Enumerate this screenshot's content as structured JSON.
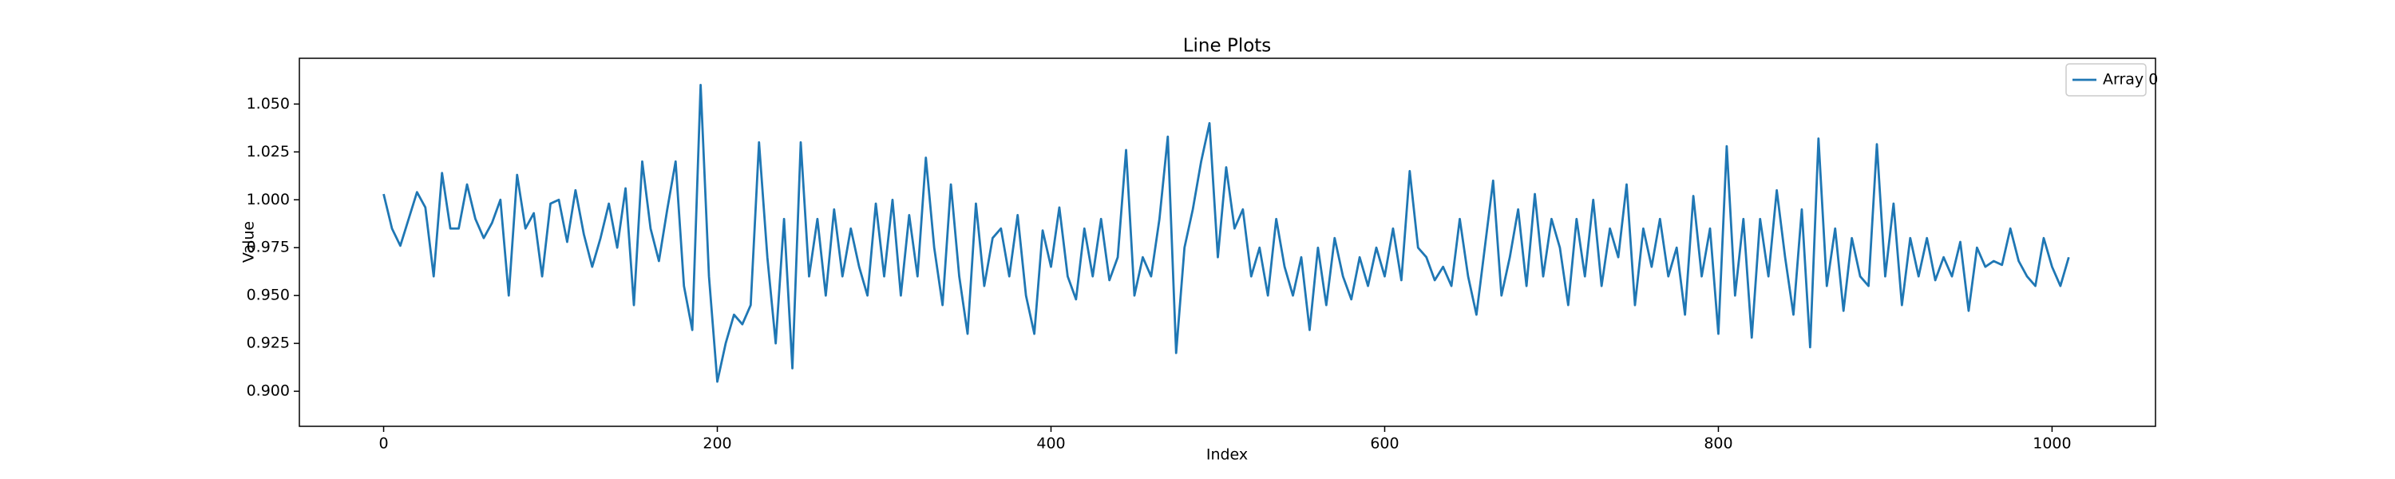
{
  "chart_data": {
    "type": "line",
    "title": "Line Plots",
    "x_label": "Index",
    "y_label": "Value",
    "x": [
      0,
      5,
      10,
      15,
      20,
      25,
      30,
      35,
      40,
      45,
      50,
      55,
      60,
      65,
      70,
      75,
      80,
      85,
      90,
      95,
      100,
      105,
      110,
      115,
      120,
      125,
      130,
      135,
      140,
      145,
      150,
      155,
      160,
      165,
      170,
      175,
      180,
      185,
      190,
      195,
      200,
      205,
      210,
      215,
      220,
      225,
      230,
      235,
      240,
      245,
      250,
      255,
      260,
      265,
      270,
      275,
      280,
      285,
      290,
      295,
      300,
      305,
      310,
      315,
      320,
      325,
      330,
      335,
      340,
      345,
      350,
      355,
      360,
      365,
      370,
      375,
      380,
      385,
      390,
      395,
      400,
      405,
      410,
      415,
      420,
      425,
      430,
      435,
      440,
      445,
      450,
      455,
      460,
      465,
      470,
      475,
      480,
      485,
      490,
      495,
      500,
      505,
      510,
      515,
      520,
      525,
      530,
      535,
      540,
      545,
      550,
      555,
      560,
      565,
      570,
      575,
      580,
      585,
      590,
      595,
      600,
      605,
      610,
      615,
      620,
      625,
      630,
      635,
      640,
      645,
      650,
      655,
      660,
      665,
      670,
      675,
      680,
      685,
      690,
      695,
      700,
      705,
      710,
      715,
      720,
      725,
      730,
      735,
      740,
      745,
      750,
      755,
      760,
      765,
      770,
      775,
      780,
      785,
      790,
      795,
      800,
      805,
      810,
      815,
      820,
      825,
      830,
      835,
      840,
      845,
      850,
      855,
      860,
      865,
      870,
      875,
      880,
      885,
      890,
      895,
      900,
      905,
      910,
      915,
      920,
      925,
      930,
      935,
      940,
      945,
      950,
      955,
      960,
      965,
      970,
      975,
      980,
      985,
      990,
      995,
      1000,
      1005,
      1010
    ],
    "series": [
      {
        "name": "Array 0",
        "color": "#1f77b4",
        "values": [
          1.003,
          0.985,
          0.976,
          0.99,
          1.004,
          0.996,
          0.96,
          1.014,
          0.985,
          0.985,
          1.008,
          0.99,
          0.98,
          0.988,
          1.0,
          0.95,
          1.013,
          0.985,
          0.993,
          0.96,
          0.998,
          1.0,
          0.978,
          1.005,
          0.982,
          0.965,
          0.98,
          0.998,
          0.975,
          1.006,
          0.945,
          1.02,
          0.985,
          0.968,
          0.995,
          1.02,
          0.955,
          0.932,
          1.06,
          0.96,
          0.905,
          0.925,
          0.94,
          0.935,
          0.945,
          1.03,
          0.97,
          0.925,
          0.99,
          0.912,
          1.03,
          0.96,
          0.99,
          0.95,
          0.995,
          0.96,
          0.985,
          0.965,
          0.95,
          0.998,
          0.96,
          1.0,
          0.95,
          0.992,
          0.96,
          1.022,
          0.975,
          0.945,
          1.008,
          0.96,
          0.93,
          0.998,
          0.955,
          0.98,
          0.985,
          0.96,
          0.992,
          0.95,
          0.93,
          0.984,
          0.965,
          0.996,
          0.96,
          0.948,
          0.985,
          0.96,
          0.99,
          0.958,
          0.97,
          1.026,
          0.95,
          0.97,
          0.96,
          0.99,
          1.033,
          0.92,
          0.975,
          0.995,
          1.02,
          1.04,
          0.97,
          1.017,
          0.985,
          0.995,
          0.96,
          0.975,
          0.95,
          0.99,
          0.965,
          0.95,
          0.97,
          0.932,
          0.975,
          0.945,
          0.98,
          0.96,
          0.948,
          0.97,
          0.955,
          0.975,
          0.96,
          0.985,
          0.958,
          1.015,
          0.975,
          0.97,
          0.958,
          0.965,
          0.955,
          0.99,
          0.96,
          0.94,
          0.975,
          1.01,
          0.95,
          0.97,
          0.995,
          0.955,
          1.003,
          0.96,
          0.99,
          0.975,
          0.945,
          0.99,
          0.96,
          1.0,
          0.955,
          0.985,
          0.97,
          1.008,
          0.945,
          0.985,
          0.965,
          0.99,
          0.96,
          0.975,
          0.94,
          1.002,
          0.96,
          0.985,
          0.93,
          1.028,
          0.95,
          0.99,
          0.928,
          0.99,
          0.96,
          1.005,
          0.97,
          0.94,
          0.995,
          0.923,
          1.032,
          0.955,
          0.985,
          0.942,
          0.98,
          0.96,
          0.955,
          1.029,
          0.96,
          0.998,
          0.945,
          0.98,
          0.96,
          0.98,
          0.958,
          0.97,
          0.96,
          0.978,
          0.942,
          0.975,
          0.965,
          0.968,
          0.966,
          0.985,
          0.968,
          0.96,
          0.955,
          0.98,
          0.965,
          0.955,
          0.97
        ]
      }
    ],
    "xlim": [
      -50.5,
      1062
    ],
    "xticks": [
      0,
      200,
      400,
      600,
      800,
      1000
    ],
    "ylim": [
      0.8817,
      1.0739
    ],
    "yticks": [
      {
        "value": 0.9,
        "label": "0.900"
      },
      {
        "value": 0.925,
        "label": "0.925"
      },
      {
        "value": 0.95,
        "label": "0.950"
      },
      {
        "value": 0.975,
        "label": "0.975"
      },
      {
        "value": 1.0,
        "label": "1.000"
      },
      {
        "value": 1.025,
        "label": "1.025"
      },
      {
        "value": 1.05,
        "label": "1.050"
      }
    ],
    "legend": "upper right",
    "grid": false
  }
}
